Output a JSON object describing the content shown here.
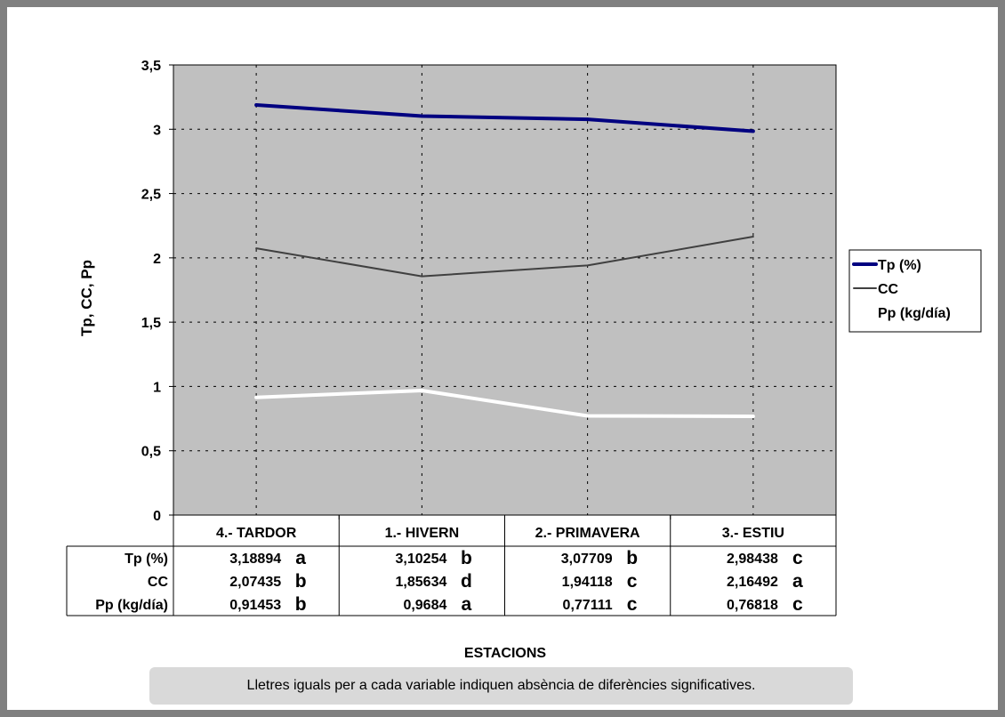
{
  "chart_data": {
    "type": "line",
    "ylabel": "Tp, CC, Pp",
    "xlabel": "ESTACIONS",
    "ylim": [
      0,
      3.5
    ],
    "yticks": [
      "0",
      "0,5",
      "1",
      "1,5",
      "2",
      "2,5",
      "3",
      "3,5"
    ],
    "categories": [
      "4.- TARDOR",
      "1.- HIVERN",
      "2.- PRIMAVERA",
      "3.- ESTIU"
    ],
    "grid": true,
    "legend_position": "right",
    "plot_background": "#c0c0c0",
    "series": [
      {
        "name": "Tp (%)",
        "color": "#000080",
        "values": [
          3.18894,
          3.10254,
          3.07709,
          2.98438
        ],
        "labels": [
          "3,18894",
          "3,10254",
          "3,07709",
          "2,98438"
        ],
        "letters": [
          "a",
          "b",
          "b",
          "c"
        ]
      },
      {
        "name": "CC",
        "color": "#404040",
        "values": [
          2.07435,
          1.85634,
          1.94118,
          2.16492
        ],
        "labels": [
          "2,07435",
          "1,85634",
          "1,94118",
          "2,16492"
        ],
        "letters": [
          "b",
          "d",
          "c",
          "a"
        ]
      },
      {
        "name": "Pp (kg/día)",
        "color": "#ffffff",
        "values": [
          0.91453,
          0.9684,
          0.77111,
          0.76818
        ],
        "labels": [
          "0,91453",
          "0,9684",
          "0,77111",
          "0,76818"
        ],
        "letters": [
          "b",
          "a",
          "c",
          "c"
        ]
      }
    ],
    "note": "Lletres iguals per a cada variable indiquen absència de diferències significatives."
  }
}
